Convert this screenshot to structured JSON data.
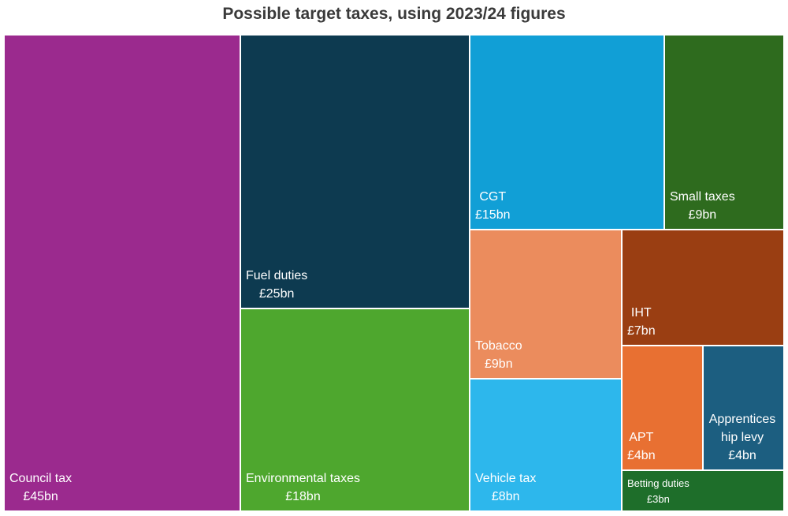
{
  "chart_data": {
    "type": "treemap",
    "title": "Possible target taxes, using 2023/24 figures",
    "categories": [
      "Council tax",
      "Fuel duties",
      "Environmental taxes",
      "CGT",
      "Small taxes",
      "Tobacco",
      "IHT",
      "Vehicle tax",
      "APT",
      "Apprenticeship levy",
      "Betting duties"
    ],
    "values": [
      45,
      25,
      18,
      15,
      9,
      9,
      7,
      8,
      4,
      4,
      3
    ],
    "value_labels": [
      "£45bn",
      "£25bn",
      "£18bn",
      "£15bn",
      "£9bn",
      "£9bn",
      "£7bn",
      "£8bn",
      "£4bn",
      "£4bn",
      "£3bn"
    ],
    "colors": [
      "#9b2a8e",
      "#0d3a50",
      "#4ea72e",
      "#119fd6",
      "#2e6b1e",
      "#eb8c5d",
      "#9a3e12",
      "#2db7ec",
      "#e87032",
      "#1c5e80",
      "#1e6e2a"
    ]
  }
}
